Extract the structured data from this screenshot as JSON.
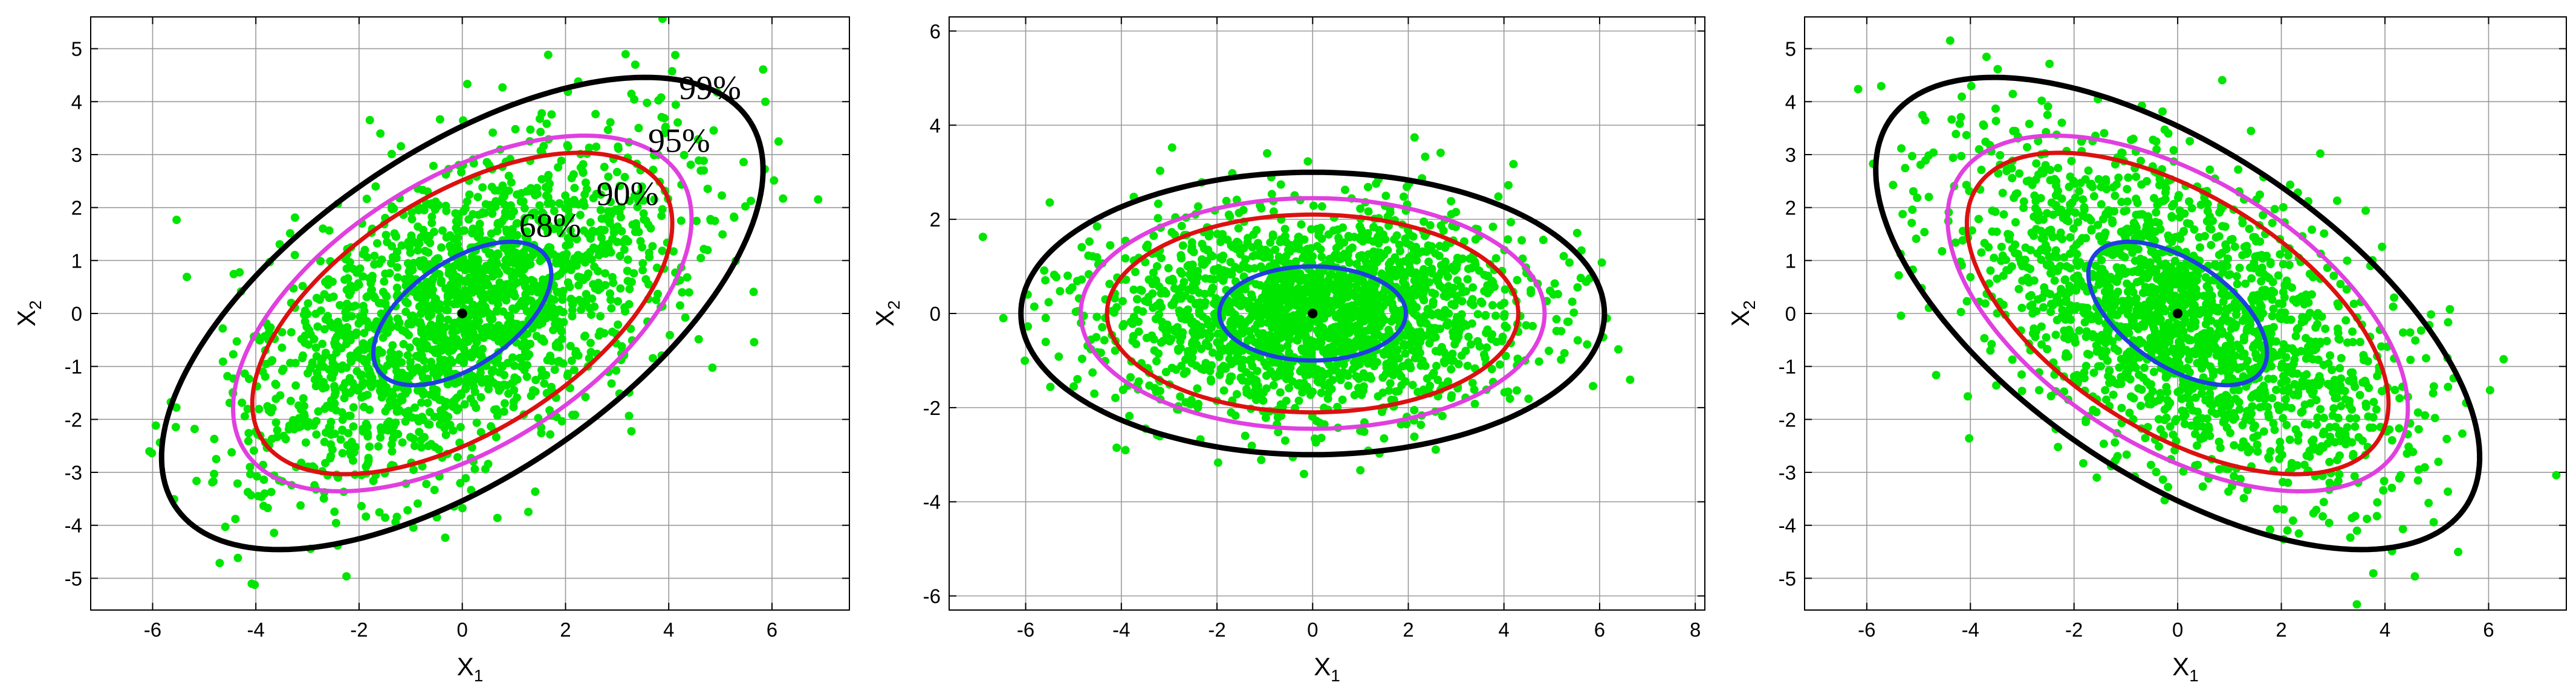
{
  "colors": {
    "points": "#00e600",
    "center": "#000000",
    "c68": "#1f3fe0",
    "c90": "#dd1010",
    "c95": "#e040e0",
    "c99": "#000000",
    "grid": "#9a9a9a",
    "frame": "#000000"
  },
  "chart_data": [
    {
      "type": "scatter",
      "title": "",
      "xlabel": "X",
      "xlabel_sub": "1",
      "ylabel": "X",
      "ylabel_sub": "2",
      "xlim": [
        -7.2,
        7.5
      ],
      "ylim": [
        -5.6,
        5.6
      ],
      "xticks": [
        -6,
        -4,
        -2,
        0,
        2,
        4,
        6
      ],
      "yticks": [
        -5,
        -4,
        -3,
        -2,
        -1,
        0,
        1,
        2,
        3,
        4,
        5
      ],
      "grid": true,
      "center": [
        0,
        0
      ],
      "cloud": {
        "n_points": 2000,
        "sd_major": 2.3,
        "sd_minor": 1.2,
        "angle_deg": 33,
        "seed": 11
      },
      "contours": [
        {
          "label": "68%",
          "semi_major": 1.95,
          "semi_minor": 1.0,
          "angle_deg": 33,
          "color_key": "c68"
        },
        {
          "label": "90%",
          "semi_major": 4.55,
          "semi_minor": 2.25,
          "angle_deg": 31,
          "color_key": "c90"
        },
        {
          "label": "95%",
          "semi_major": 4.95,
          "semi_minor": 2.55,
          "angle_deg": 31,
          "color_key": "c95"
        },
        {
          "label": "99%",
          "semi_major": 6.65,
          "semi_minor": 3.1,
          "angle_deg": 33,
          "color_key": "c99"
        }
      ],
      "annotations": [
        {
          "text": "68%",
          "x": 1.1,
          "y": 1.45
        },
        {
          "text": "90%",
          "x": 2.6,
          "y": 2.05
        },
        {
          "text": "95%",
          "x": 3.6,
          "y": 3.05
        },
        {
          "text": "99%",
          "x": 4.2,
          "y": 4.05
        }
      ]
    },
    {
      "type": "scatter",
      "title": "",
      "xlabel": "X",
      "xlabel_sub": "1",
      "ylabel": "X",
      "ylabel_sub": "2",
      "xlim": [
        -7.6,
        8.2
      ],
      "ylim": [
        -6.3,
        6.3
      ],
      "xticks": [
        -6,
        -4,
        -2,
        0,
        2,
        4,
        6,
        8
      ],
      "yticks": [
        -6,
        -4,
        -2,
        0,
        2,
        4,
        6
      ],
      "grid": true,
      "center": [
        0,
        0
      ],
      "cloud": {
        "n_points": 2000,
        "sd_major": 2.2,
        "sd_minor": 1.05,
        "angle_deg": 0,
        "seed": 23
      },
      "contours": [
        {
          "label": "68%",
          "semi_major": 1.95,
          "semi_minor": 1.0,
          "angle_deg": 0,
          "color_key": "c68"
        },
        {
          "label": "90%",
          "semi_major": 4.3,
          "semi_minor": 2.1,
          "angle_deg": 0,
          "color_key": "c90"
        },
        {
          "label": "95%",
          "semi_major": 4.85,
          "semi_minor": 2.45,
          "angle_deg": 0,
          "color_key": "c95"
        },
        {
          "label": "99%",
          "semi_major": 6.1,
          "semi_minor": 3.0,
          "angle_deg": 0,
          "color_key": "c99"
        }
      ],
      "annotations": []
    },
    {
      "type": "scatter",
      "title": "",
      "xlabel": "X",
      "xlabel_sub": "1",
      "ylabel": "X",
      "ylabel_sub": "2",
      "xlim": [
        -7.2,
        7.5
      ],
      "ylim": [
        -5.6,
        5.6
      ],
      "xticks": [
        -6,
        -4,
        -2,
        0,
        2,
        4,
        6
      ],
      "yticks": [
        -5,
        -4,
        -3,
        -2,
        -1,
        0,
        1,
        2,
        3,
        4,
        5
      ],
      "grid": true,
      "center": [
        0,
        0
      ],
      "cloud": {
        "n_points": 2000,
        "sd_major": 2.3,
        "sd_minor": 1.2,
        "angle_deg": -33,
        "seed": 37
      },
      "contours": [
        {
          "label": "68%",
          "semi_major": 1.95,
          "semi_minor": 1.0,
          "angle_deg": -33,
          "color_key": "c68"
        },
        {
          "label": "90%",
          "semi_major": 4.55,
          "semi_minor": 2.25,
          "angle_deg": -31,
          "color_key": "c90"
        },
        {
          "label": "95%",
          "semi_major": 4.95,
          "semi_minor": 2.55,
          "angle_deg": -31,
          "color_key": "c95"
        },
        {
          "label": "99%",
          "semi_major": 6.65,
          "semi_minor": 3.1,
          "angle_deg": -33,
          "color_key": "c99"
        }
      ],
      "annotations": []
    }
  ]
}
